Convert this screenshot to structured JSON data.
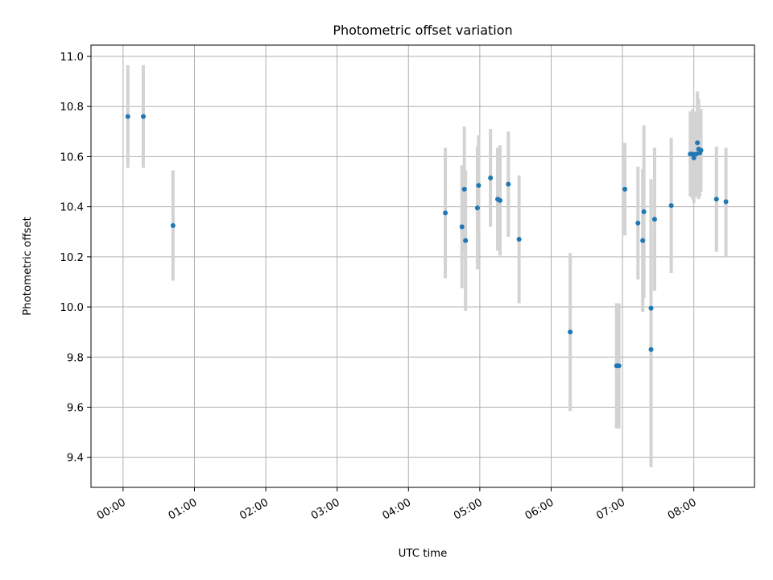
{
  "chart_data": {
    "type": "scatter",
    "title": "Photometric offset variation",
    "xlabel": "UTC time",
    "ylabel": "Photometric offset",
    "xlim": [
      "23:33",
      "08:51"
    ],
    "ylim": [
      9.28,
      11.045
    ],
    "xticks": [
      "00:00",
      "01:00",
      "02:00",
      "03:00",
      "04:00",
      "05:00",
      "06:00",
      "07:00",
      "08:00"
    ],
    "yticks": [
      "9.4",
      "9.6",
      "9.8",
      "10.0",
      "10.2",
      "10.4",
      "10.6",
      "10.8",
      "11.0"
    ],
    "grid": true,
    "colors": {
      "marker": "#1f77b4",
      "errorbar": "#d3d3d3",
      "grid": "#b0b0b0",
      "axes": "#000000"
    },
    "points": [
      {
        "t": "00:04",
        "y": 10.76,
        "ylo": 10.555,
        "yhi": 10.965
      },
      {
        "t": "00:17",
        "y": 10.76,
        "ylo": 10.555,
        "yhi": 10.965
      },
      {
        "t": "00:42",
        "y": 10.325,
        "ylo": 10.105,
        "yhi": 10.545
      },
      {
        "t": "04:31",
        "y": 10.375,
        "ylo": 10.115,
        "yhi": 10.635
      },
      {
        "t": "04:45",
        "y": 10.32,
        "ylo": 10.075,
        "yhi": 10.565
      },
      {
        "t": "04:47",
        "y": 10.47,
        "ylo": 10.22,
        "yhi": 10.72
      },
      {
        "t": "04:48",
        "y": 10.265,
        "ylo": 9.985,
        "yhi": 10.545
      },
      {
        "t": "04:58",
        "y": 10.395,
        "ylo": 10.15,
        "yhi": 10.64
      },
      {
        "t": "04:59",
        "y": 10.485,
        "ylo": 10.285,
        "yhi": 10.685
      },
      {
        "t": "05:09",
        "y": 10.515,
        "ylo": 10.32,
        "yhi": 10.71
      },
      {
        "t": "05:15",
        "y": 10.43,
        "ylo": 10.225,
        "yhi": 10.635
      },
      {
        "t": "05:17",
        "y": 10.425,
        "ylo": 10.205,
        "yhi": 10.645
      },
      {
        "t": "05:24",
        "y": 10.49,
        "ylo": 10.28,
        "yhi": 10.7
      },
      {
        "t": "05:33",
        "y": 10.27,
        "ylo": 10.015,
        "yhi": 10.525
      },
      {
        "t": "06:16",
        "y": 9.9,
        "ylo": 9.585,
        "yhi": 10.215
      },
      {
        "t": "06:55",
        "y": 9.765,
        "ylo": 9.515,
        "yhi": 10.015
      },
      {
        "t": "06:57",
        "y": 9.765,
        "ylo": 9.515,
        "yhi": 10.015
      },
      {
        "t": "07:02",
        "y": 10.47,
        "ylo": 10.285,
        "yhi": 10.655
      },
      {
        "t": "07:13",
        "y": 10.335,
        "ylo": 10.11,
        "yhi": 10.56
      },
      {
        "t": "07:17",
        "y": 10.265,
        "ylo": 9.98,
        "yhi": 10.55
      },
      {
        "t": "07:18",
        "y": 10.38,
        "ylo": 10.035,
        "yhi": 10.725
      },
      {
        "t": "07:24",
        "y": 9.995,
        "ylo": 9.48,
        "yhi": 10.51
      },
      {
        "t": "07:24",
        "y": 9.83,
        "ylo": 9.36,
        "yhi": 10.3
      },
      {
        "t": "07:27",
        "y": 10.35,
        "ylo": 10.065,
        "yhi": 10.635
      },
      {
        "t": "07:41",
        "y": 10.405,
        "ylo": 10.135,
        "yhi": 10.675
      },
      {
        "t": "07:57",
        "y": 10.61,
        "ylo": 10.44,
        "yhi": 10.78
      },
      {
        "t": "07:59",
        "y": 10.61,
        "ylo": 10.43,
        "yhi": 10.79
      },
      {
        "t": "08:00",
        "y": 10.595,
        "ylo": 10.415,
        "yhi": 10.775
      },
      {
        "t": "08:02",
        "y": 10.61,
        "ylo": 10.44,
        "yhi": 10.78
      },
      {
        "t": "08:03",
        "y": 10.655,
        "ylo": 10.45,
        "yhi": 10.86
      },
      {
        "t": "08:04",
        "y": 10.63,
        "ylo": 10.43,
        "yhi": 10.83
      },
      {
        "t": "08:05",
        "y": 10.615,
        "ylo": 10.44,
        "yhi": 10.79
      },
      {
        "t": "08:06",
        "y": 10.625,
        "ylo": 10.46,
        "yhi": 10.79
      },
      {
        "t": "08:19",
        "y": 10.43,
        "ylo": 10.22,
        "yhi": 10.64
      },
      {
        "t": "08:27",
        "y": 10.42,
        "ylo": 10.2,
        "yhi": 10.635
      }
    ]
  }
}
